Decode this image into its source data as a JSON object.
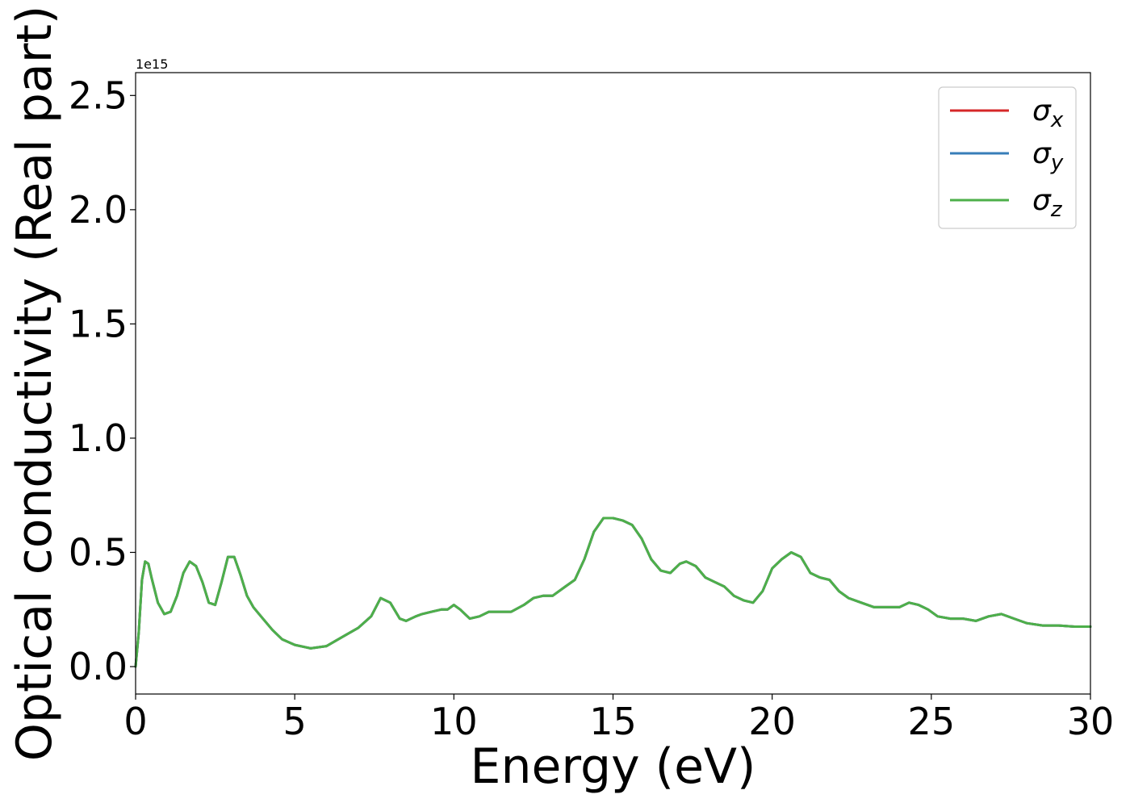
{
  "chart_data": {
    "type": "line",
    "xlabel": "Energy (eV)",
    "ylabel": "Optical conductivity (Real part)",
    "y_offset_label": "1e15",
    "xlim": [
      0,
      30
    ],
    "ylim": [
      -0.12,
      2.6
    ],
    "xticks": [
      0,
      5,
      10,
      15,
      20,
      25,
      30
    ],
    "xtick_labels": [
      "0",
      "5",
      "10",
      "15",
      "20",
      "25",
      "30"
    ],
    "yticks": [
      0.0,
      0.5,
      1.0,
      1.5,
      2.0,
      2.5
    ],
    "ytick_labels": [
      "0.0",
      "0.5",
      "1.0",
      "1.5",
      "2.0",
      "2.5"
    ],
    "grid": false,
    "legend_position": "top-right",
    "x": [
      0,
      0.1,
      0.2,
      0.3,
      0.4,
      0.5,
      0.7,
      0.9,
      1.1,
      1.3,
      1.5,
      1.7,
      1.9,
      2.1,
      2.3,
      2.5,
      2.7,
      2.9,
      3.1,
      3.3,
      3.5,
      3.7,
      4.0,
      4.3,
      4.6,
      5.0,
      5.5,
      6.0,
      6.5,
      7.0,
      7.4,
      7.7,
      8.0,
      8.3,
      8.5,
      8.8,
      9.0,
      9.3,
      9.6,
      9.8,
      10.0,
      10.2,
      10.5,
      10.8,
      11.1,
      11.4,
      11.8,
      12.2,
      12.5,
      12.8,
      13.1,
      13.5,
      13.8,
      14.1,
      14.4,
      14.7,
      15.0,
      15.3,
      15.6,
      15.9,
      16.2,
      16.5,
      16.8,
      17.1,
      17.3,
      17.6,
      17.9,
      18.2,
      18.5,
      18.8,
      19.1,
      19.4,
      19.7,
      20.0,
      20.3,
      20.6,
      20.9,
      21.2,
      21.5,
      21.8,
      22.1,
      22.4,
      22.8,
      23.2,
      23.6,
      24.0,
      24.3,
      24.6,
      24.9,
      25.2,
      25.6,
      26.0,
      26.4,
      26.8,
      27.2,
      27.6,
      28.0,
      28.5,
      29.0,
      29.5,
      30.0
    ],
    "series": [
      {
        "name": "σ",
        "subscript": "x",
        "color": "#d62728",
        "values": [
          0.0,
          0.15,
          0.38,
          0.46,
          0.45,
          0.39,
          0.28,
          0.23,
          0.24,
          0.31,
          0.41,
          0.46,
          0.44,
          0.37,
          0.28,
          0.27,
          0.37,
          0.48,
          0.48,
          0.4,
          0.31,
          0.26,
          0.21,
          0.16,
          0.12,
          0.095,
          0.08,
          0.09,
          0.13,
          0.17,
          0.22,
          0.3,
          0.28,
          0.21,
          0.2,
          0.22,
          0.23,
          0.24,
          0.25,
          0.25,
          0.27,
          0.25,
          0.21,
          0.22,
          0.24,
          0.24,
          0.24,
          0.27,
          0.3,
          0.31,
          0.31,
          0.35,
          0.38,
          0.47,
          0.59,
          0.65,
          0.65,
          0.64,
          0.62,
          0.56,
          0.47,
          0.42,
          0.41,
          0.45,
          0.46,
          0.44,
          0.39,
          0.37,
          0.35,
          0.31,
          0.29,
          0.28,
          0.33,
          0.43,
          0.47,
          0.5,
          0.48,
          0.41,
          0.39,
          0.38,
          0.33,
          0.3,
          0.28,
          0.26,
          0.26,
          0.26,
          0.28,
          0.27,
          0.25,
          0.22,
          0.21,
          0.21,
          0.2,
          0.22,
          0.23,
          0.21,
          0.19,
          0.18,
          0.18,
          0.175,
          0.175
        ]
      },
      {
        "name": "σ",
        "subscript": "y",
        "color": "#377eb8",
        "values": [
          0.0,
          0.15,
          0.38,
          0.46,
          0.45,
          0.39,
          0.28,
          0.23,
          0.24,
          0.31,
          0.41,
          0.46,
          0.44,
          0.37,
          0.28,
          0.27,
          0.37,
          0.48,
          0.48,
          0.4,
          0.31,
          0.26,
          0.21,
          0.16,
          0.12,
          0.095,
          0.08,
          0.09,
          0.13,
          0.17,
          0.22,
          0.3,
          0.28,
          0.21,
          0.2,
          0.22,
          0.23,
          0.24,
          0.25,
          0.25,
          0.27,
          0.25,
          0.21,
          0.22,
          0.24,
          0.24,
          0.24,
          0.27,
          0.3,
          0.31,
          0.31,
          0.35,
          0.38,
          0.47,
          0.59,
          0.65,
          0.65,
          0.64,
          0.62,
          0.56,
          0.47,
          0.42,
          0.41,
          0.45,
          0.46,
          0.44,
          0.39,
          0.37,
          0.35,
          0.31,
          0.29,
          0.28,
          0.33,
          0.43,
          0.47,
          0.5,
          0.48,
          0.41,
          0.39,
          0.38,
          0.33,
          0.3,
          0.28,
          0.26,
          0.26,
          0.26,
          0.28,
          0.27,
          0.25,
          0.22,
          0.21,
          0.21,
          0.2,
          0.22,
          0.23,
          0.21,
          0.19,
          0.18,
          0.18,
          0.175,
          0.175
        ]
      },
      {
        "name": "σ",
        "subscript": "z",
        "color": "#4daf4a",
        "values": [
          0.0,
          0.15,
          0.38,
          0.46,
          0.45,
          0.39,
          0.28,
          0.23,
          0.24,
          0.31,
          0.41,
          0.46,
          0.44,
          0.37,
          0.28,
          0.27,
          0.37,
          0.48,
          0.48,
          0.4,
          0.31,
          0.26,
          0.21,
          0.16,
          0.12,
          0.095,
          0.08,
          0.09,
          0.13,
          0.17,
          0.22,
          0.3,
          0.28,
          0.21,
          0.2,
          0.22,
          0.23,
          0.24,
          0.25,
          0.25,
          0.27,
          0.25,
          0.21,
          0.22,
          0.24,
          0.24,
          0.24,
          0.27,
          0.3,
          0.31,
          0.31,
          0.35,
          0.38,
          0.47,
          0.59,
          0.65,
          0.65,
          0.64,
          0.62,
          0.56,
          0.47,
          0.42,
          0.41,
          0.45,
          0.46,
          0.44,
          0.39,
          0.37,
          0.35,
          0.31,
          0.29,
          0.28,
          0.33,
          0.43,
          0.47,
          0.5,
          0.48,
          0.41,
          0.39,
          0.38,
          0.33,
          0.3,
          0.28,
          0.26,
          0.26,
          0.26,
          0.28,
          0.27,
          0.25,
          0.22,
          0.21,
          0.21,
          0.2,
          0.22,
          0.23,
          0.21,
          0.19,
          0.18,
          0.18,
          0.175,
          0.175
        ]
      }
    ]
  }
}
